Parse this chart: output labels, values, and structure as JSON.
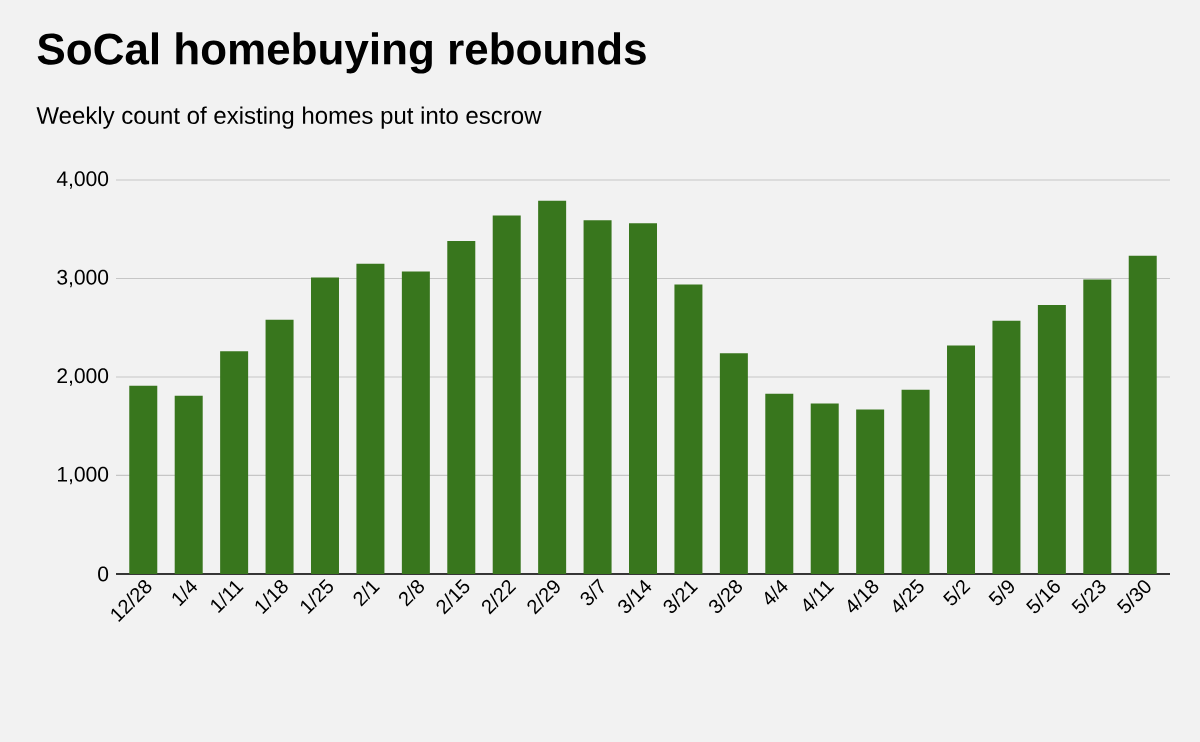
{
  "chart_data": {
    "type": "bar",
    "title": "SoCal homebuying rebounds",
    "subtitle": "Weekly count of existing homes put into escrow",
    "categories": [
      "12/28",
      "1/4",
      "1/11",
      "1/18",
      "1/25",
      "2/1",
      "2/8",
      "2/15",
      "2/22",
      "2/29",
      "3/7",
      "3/14",
      "3/21",
      "3/28",
      "4/4",
      "4/11",
      "4/18",
      "4/25",
      "5/2",
      "5/9",
      "5/16",
      "5/23",
      "5/30"
    ],
    "values": [
      1910,
      1810,
      2260,
      2580,
      3010,
      3150,
      3070,
      3380,
      3640,
      3790,
      3590,
      3560,
      2940,
      2240,
      1830,
      1730,
      1670,
      1870,
      2320,
      2570,
      2730,
      2990,
      3230
    ],
    "color": "#38761d",
    "ylim": [
      0,
      4000
    ],
    "yticks": [
      {
        "value": 0,
        "label": "0"
      },
      {
        "value": 1000,
        "label": "1,000"
      },
      {
        "value": 2000,
        "label": "2,000"
      },
      {
        "value": 3000,
        "label": "3,000"
      },
      {
        "value": 4000,
        "label": "4,000"
      }
    ],
    "grid": "y"
  }
}
